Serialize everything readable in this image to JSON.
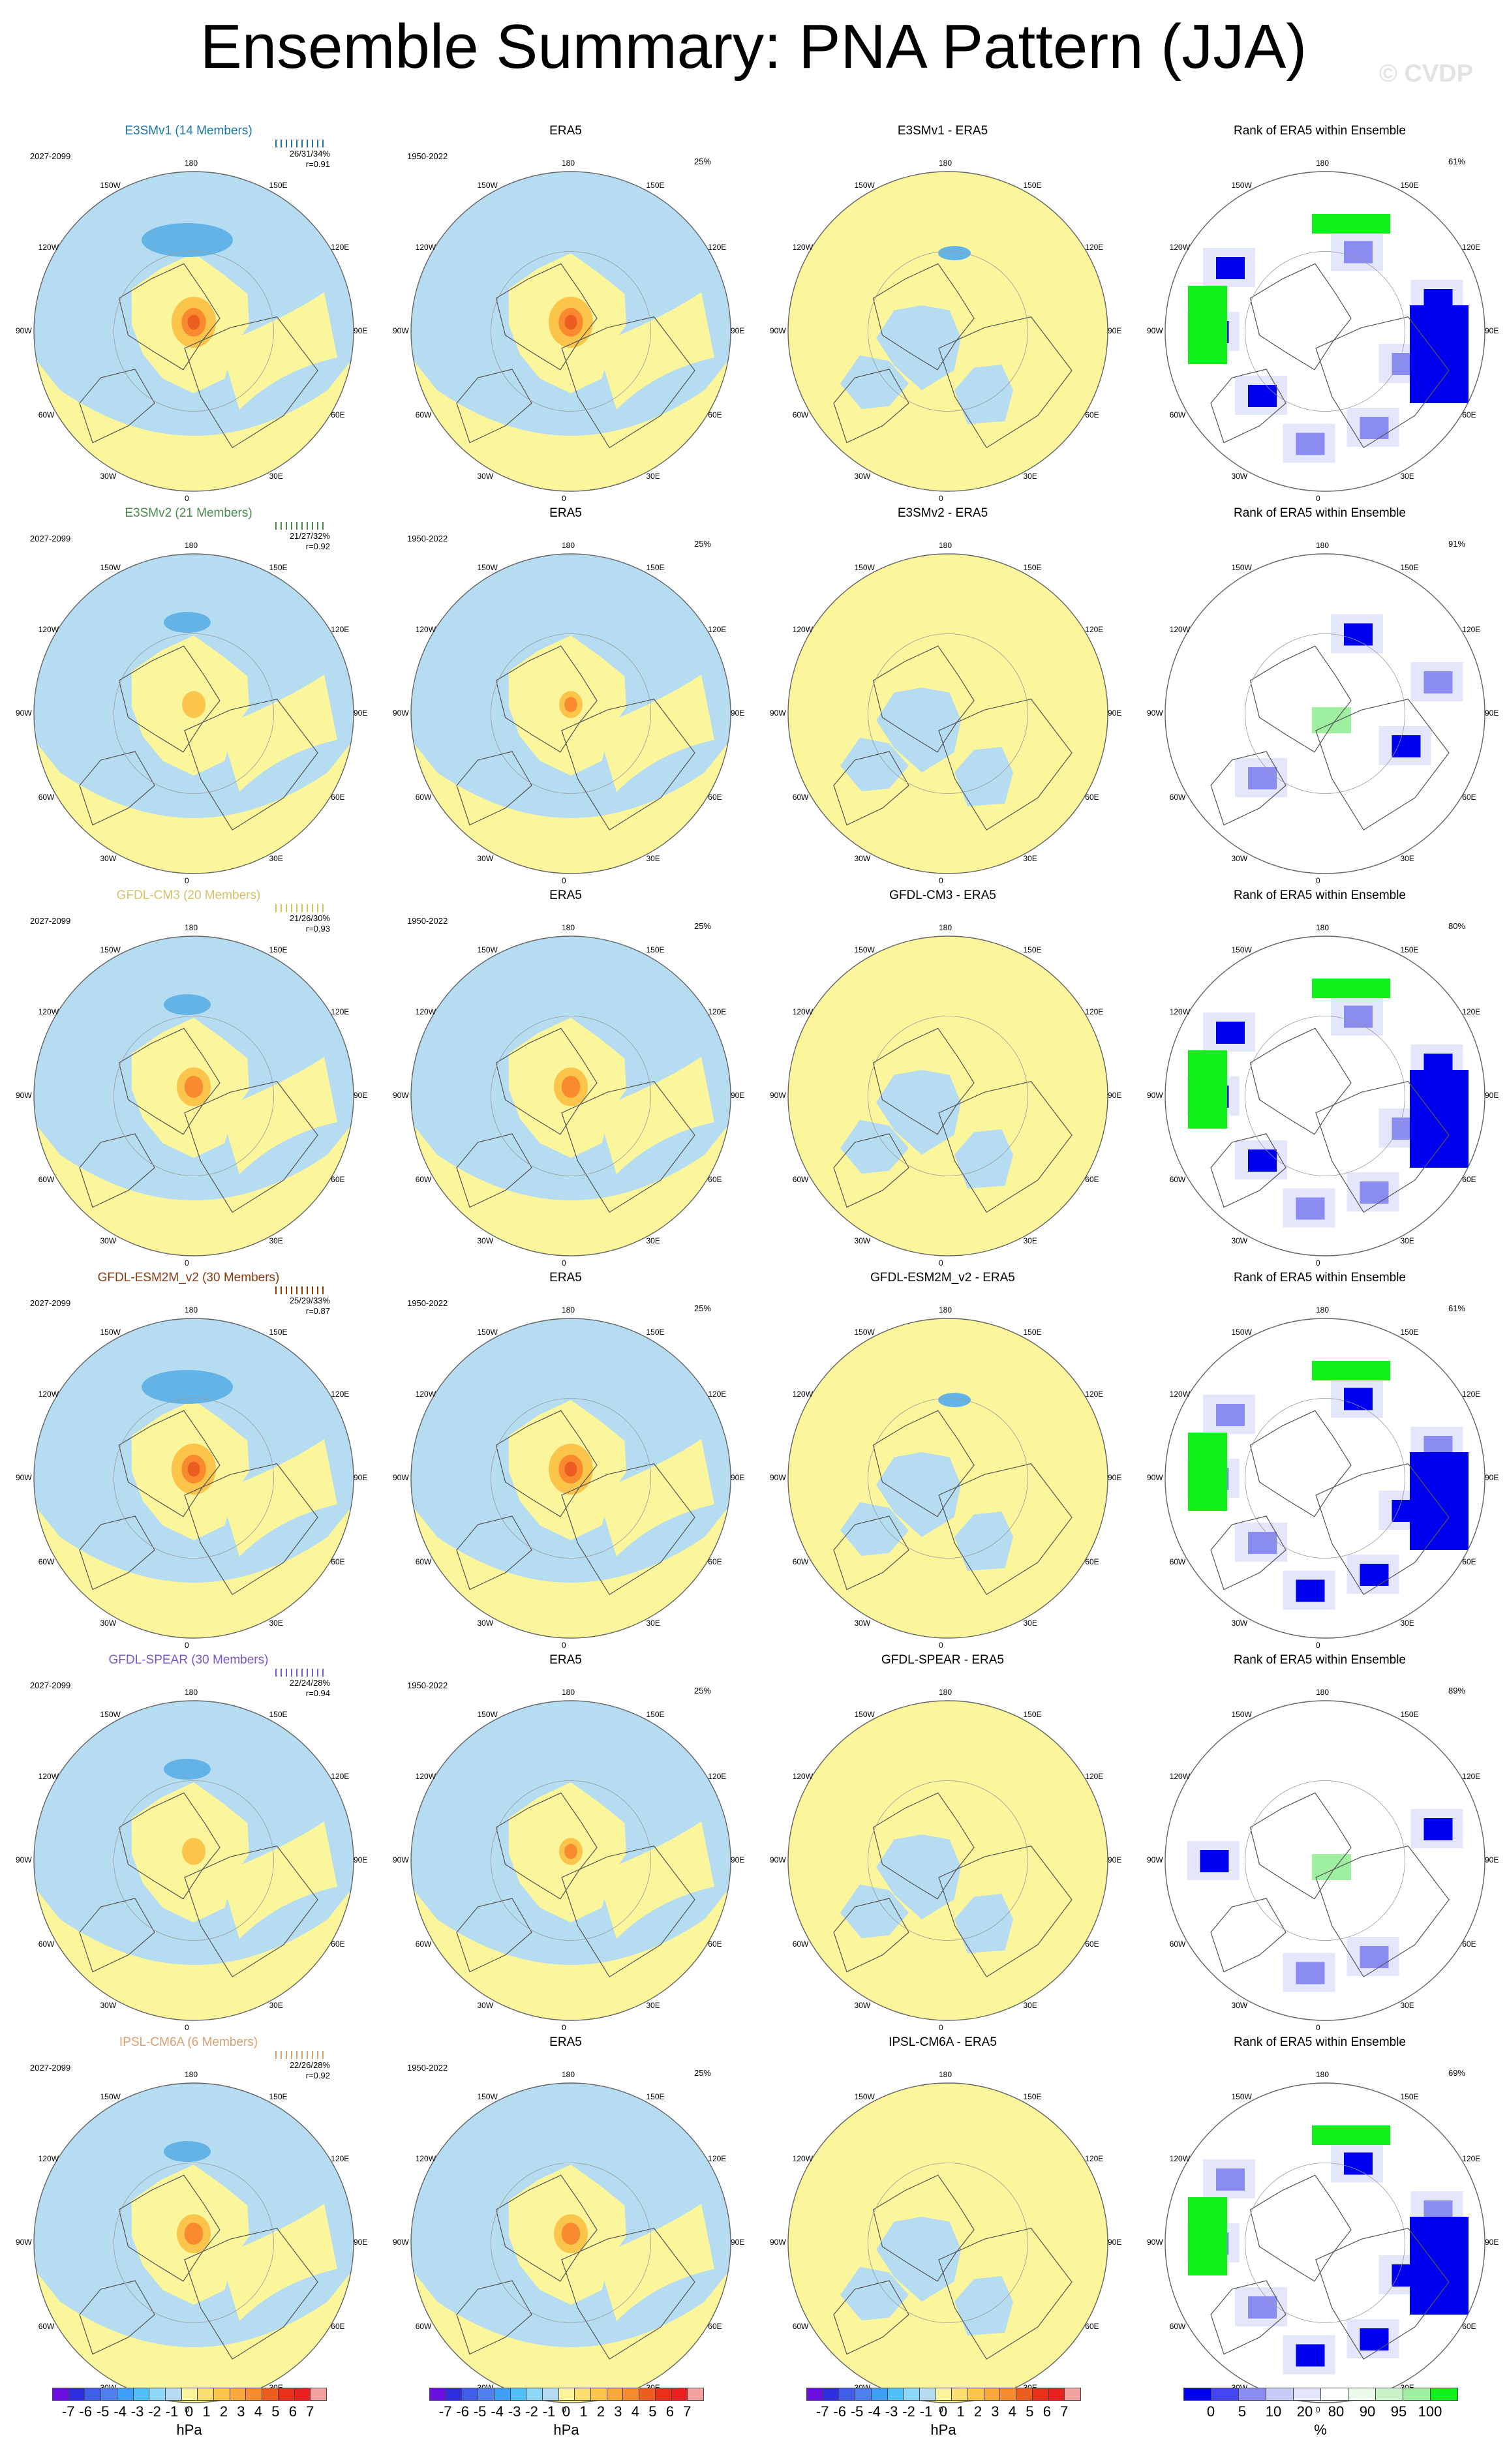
{
  "page": {
    "title": "Ensemble Summary: PNA Pattern (JJA)",
    "watermark": "© CVDP"
  },
  "colors": {
    "positive_1": "#fbf59c",
    "positive_2": "#fbc54b",
    "positive_3": "#f98a2e",
    "positive_4": "#ec5d20",
    "negative_1": "#b5dcf1",
    "negative_2": "#63b3e6",
    "rank_low": "#0000f0",
    "rank_mid_low": "#8a8cf2",
    "rank_very_light": "#e4e6fb",
    "rank_high": "#11f01a",
    "rank_mid_high": "#9ef0a0",
    "coastline": "#555555"
  },
  "longitude_labels": [
    "180",
    "150E",
    "120E",
    "90E",
    "60E",
    "30E",
    "0",
    "30W",
    "60W",
    "90W",
    "120W",
    "150W"
  ],
  "rows": [
    {
      "model": "E3SMv1 (14 Members)",
      "model_color": "#1a75a6",
      "period": "2027-2099",
      "stats": "26/31/34%",
      "r": "r=0.91",
      "obs_title": "ERA5",
      "obs_period": "1950-2022",
      "obs_pct": "25%",
      "diff_title": "E3SMv1 - ERA5",
      "rank_title": "Rank of ERA5 within Ensemble",
      "rank_pct": "61%",
      "pattern": "strong"
    },
    {
      "model": "E3SMv2 (21 Members)",
      "model_color": "#4a8a4e",
      "period": "2027-2099",
      "stats": "21/27/32%",
      "r": "r=0.92",
      "obs_title": "ERA5",
      "obs_period": "1950-2022",
      "obs_pct": "25%",
      "diff_title": "E3SMv2 - ERA5",
      "rank_title": "Rank of ERA5 within Ensemble",
      "rank_pct": "91%",
      "pattern": "weak"
    },
    {
      "model": "GFDL-CM3 (20 Members)",
      "model_color": "#d4c26a",
      "period": "2027-2099",
      "stats": "21/26/30%",
      "r": "r=0.93",
      "obs_title": "ERA5",
      "obs_period": "1950-2022",
      "obs_pct": "25%",
      "diff_title": "GFDL-CM3 - ERA5",
      "rank_title": "Rank of ERA5 within Ensemble",
      "rank_pct": "80%",
      "pattern": "medium"
    },
    {
      "model": "GFDL-ESM2M_v2 (30 Members)",
      "model_color": "#8b3a0f",
      "period": "2027-2099",
      "stats": "25/29/33%",
      "r": "r=0.87",
      "obs_title": "ERA5",
      "obs_period": "1950-2022",
      "obs_pct": "25%",
      "diff_title": "GFDL-ESM2M_v2 - ERA5",
      "rank_title": "Rank of ERA5 within Ensemble",
      "rank_pct": "61%",
      "pattern": "strong"
    },
    {
      "model": "GFDL-SPEAR (30 Members)",
      "model_color": "#7a58c8",
      "period": "2027-2099",
      "stats": "22/24/28%",
      "r": "r=0.94",
      "obs_title": "ERA5",
      "obs_period": "1950-2022",
      "obs_pct": "25%",
      "diff_title": "GFDL-SPEAR - ERA5",
      "rank_title": "Rank of ERA5 within Ensemble",
      "rank_pct": "89%",
      "pattern": "weak"
    },
    {
      "model": "IPSL-CM6A (6 Members)",
      "model_color": "#d8a070",
      "period": "2027-2099",
      "stats": "22/26/28%",
      "r": "r=0.92",
      "obs_title": "ERA5",
      "obs_period": "1950-2022",
      "obs_pct": "25%",
      "diff_title": "IPSL-CM6A - ERA5",
      "rank_title": "Rank of ERA5 within Ensemble",
      "rank_pct": "69%",
      "pattern": "medium"
    }
  ],
  "colorbar_hpa": {
    "colors": [
      "#6a0fe0",
      "#2f2fe0",
      "#3f5fe8",
      "#4f7ff0",
      "#3f9ff8",
      "#4fbff8",
      "#8fd7f7",
      "#b5dcf1",
      "#fbf59c",
      "#fbe06f",
      "#fbc54b",
      "#f9a838",
      "#f98a2e",
      "#ec5d20",
      "#e8301a",
      "#e82020",
      "#f2a0a0"
    ],
    "ticks": [
      "-7",
      "-6",
      "-5",
      "-4",
      "-3",
      "-2",
      "-1",
      "0",
      "1",
      "2",
      "3",
      "4",
      "5",
      "6",
      "7"
    ],
    "unit": "hPa"
  },
  "colorbar_rank": {
    "colors": [
      "#0000f0",
      "#4646f0",
      "#8a8cf2",
      "#c8caf7",
      "#e4e6fb",
      "#ffffff",
      "#ecfbec",
      "#c8f4c8",
      "#9ef0a0",
      "#11f01a"
    ],
    "ticks": [
      "0",
      "5",
      "10",
      "20",
      "80",
      "90",
      "95",
      "100"
    ],
    "unit": "%"
  }
}
